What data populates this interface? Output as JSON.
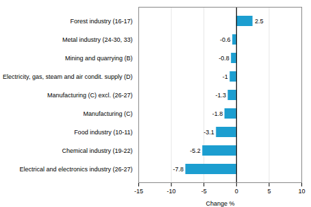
{
  "chart_data": {
    "type": "bar",
    "orientation": "horizontal",
    "categories": [
      "Electrical and electronics industry (26-27)",
      "Chemical industry (19-22)",
      "Food industry (10-11)",
      "Manufacturing (C)",
      "Manufacturing (C) excl. (26-27)",
      "Electricity, gas, steam and air condit. supply (D)",
      "Mining and quarrying (B)",
      "Metal industry (24-30, 33)",
      "Forest industry (16-17)"
    ],
    "values": [
      -7.8,
      -5.2,
      -3.1,
      -1.8,
      -1.3,
      -1.0,
      -0.8,
      -0.6,
      2.5
    ],
    "color": "#1c9ed0",
    "xlabel": "Change %",
    "xlim": [
      -15,
      10
    ],
    "xticks": [
      -15,
      -10,
      -5,
      0,
      5,
      10
    ],
    "grid": true,
    "data_labels": true
  }
}
